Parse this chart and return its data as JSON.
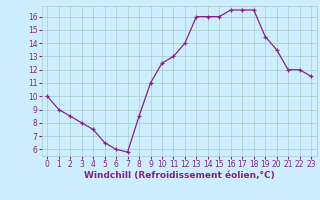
{
  "x": [
    0,
    1,
    2,
    3,
    4,
    5,
    6,
    7,
    8,
    9,
    10,
    11,
    12,
    13,
    14,
    15,
    16,
    17,
    18,
    19,
    20,
    21,
    22,
    23
  ],
  "y": [
    10,
    9,
    8.5,
    8,
    7.5,
    6.5,
    6,
    5.8,
    8.5,
    11,
    12.5,
    13,
    14,
    16,
    16,
    16,
    16.5,
    16.5,
    16.5,
    14.5,
    13.5,
    12,
    12,
    11.5
  ],
  "line_color": "#882288",
  "marker": "+",
  "bg_color": "#cceeff",
  "grid_color": "#aacccc",
  "xlabel": "Windchill (Refroidissement éolien,°C)",
  "xlabel_color": "#882288",
  "tick_color": "#882288",
  "ylim": [
    5.5,
    16.8
  ],
  "yticks": [
    6,
    7,
    8,
    9,
    10,
    11,
    12,
    13,
    14,
    15,
    16
  ],
  "xlim": [
    -0.5,
    23.5
  ],
  "font_size_label": 6.5,
  "font_size_tick": 5.5,
  "marker_size": 3,
  "line_width": 0.9
}
